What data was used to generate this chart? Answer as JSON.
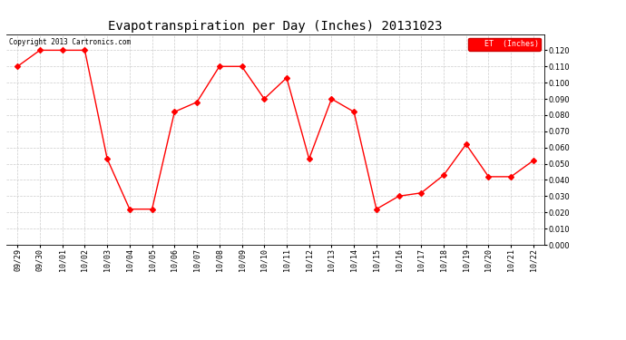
{
  "title": "Evapotranspiration per Day (Inches) 20131023",
  "copyright": "Copyright 2013 Cartronics.com",
  "legend_label": "ET  (Inches)",
  "legend_bg": "#ff0000",
  "legend_text_color": "#ffffff",
  "x_labels": [
    "09/29",
    "09/30",
    "10/01",
    "10/02",
    "10/03",
    "10/04",
    "10/05",
    "10/06",
    "10/07",
    "10/08",
    "10/09",
    "10/10",
    "10/11",
    "10/12",
    "10/13",
    "10/14",
    "10/15",
    "10/16",
    "10/17",
    "10/18",
    "10/19",
    "10/20",
    "10/21",
    "10/22"
  ],
  "y_values": [
    0.11,
    0.12,
    0.12,
    0.12,
    0.053,
    0.022,
    0.022,
    0.082,
    0.088,
    0.11,
    0.11,
    0.09,
    0.103,
    0.053,
    0.09,
    0.082,
    0.022,
    0.03,
    0.032,
    0.043,
    0.062,
    0.042,
    0.042,
    0.052
  ],
  "line_color": "#ff0000",
  "marker": "D",
  "marker_size": 3,
  "ylim": [
    0.0,
    0.13
  ],
  "yticks": [
    0.0,
    0.01,
    0.02,
    0.03,
    0.04,
    0.05,
    0.06,
    0.07,
    0.08,
    0.09,
    0.1,
    0.11,
    0.12
  ],
  "bg_color": "#ffffff",
  "grid_color": "#cccccc",
  "title_fontsize": 10,
  "tick_fontsize": 6,
  "copyright_fontsize": 5.5
}
